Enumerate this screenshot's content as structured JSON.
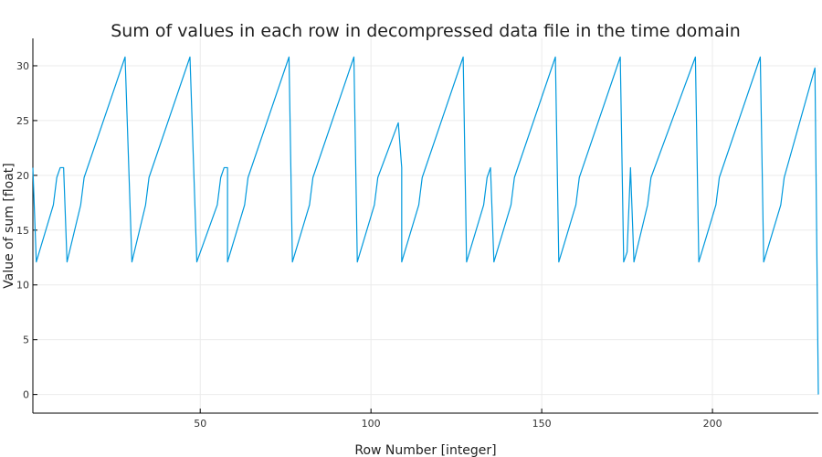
{
  "chart_data": {
    "type": "line",
    "title": "Sum of values in each row in decompressed data file in the time domain",
    "xlabel": "Row Number [integer]",
    "ylabel": "Value of sum [float]",
    "xlim": [
      1,
      231
    ],
    "ylim": [
      -1.7,
      32.5
    ],
    "xticks": [
      50,
      100,
      150,
      200
    ],
    "yticks": [
      0,
      5,
      10,
      15,
      20,
      25,
      30
    ],
    "grid": true,
    "legend": "none",
    "series": [
      {
        "color": "#0099dd",
        "points": [
          [
            1,
            20.7
          ],
          [
            2,
            12.1
          ],
          [
            7,
            17.3
          ],
          [
            8,
            19.8
          ],
          [
            9,
            20.7
          ],
          [
            10,
            20.7
          ],
          [
            11,
            12.1
          ],
          [
            15,
            17.3
          ],
          [
            16,
            19.8
          ],
          [
            28,
            30.8
          ],
          [
            30,
            12.1
          ],
          [
            34,
            17.3
          ],
          [
            35,
            19.8
          ],
          [
            47,
            30.8
          ],
          [
            49,
            12.1
          ],
          [
            55,
            17.3
          ],
          [
            56,
            19.8
          ],
          [
            57,
            20.7
          ],
          [
            58,
            20.7
          ],
          [
            58,
            12.1
          ],
          [
            63,
            17.3
          ],
          [
            64,
            19.8
          ],
          [
            76,
            30.8
          ],
          [
            77,
            12.1
          ],
          [
            82,
            17.3
          ],
          [
            83,
            19.8
          ],
          [
            95,
            30.8
          ],
          [
            96,
            12.1
          ],
          [
            101,
            17.3
          ],
          [
            102,
            19.8
          ],
          [
            108,
            24.8
          ],
          [
            109,
            20.7
          ],
          [
            109,
            12.1
          ],
          [
            114,
            17.3
          ],
          [
            115,
            19.8
          ],
          [
            127,
            30.8
          ],
          [
            128,
            12.1
          ],
          [
            133,
            17.3
          ],
          [
            134,
            19.8
          ],
          [
            135,
            20.7
          ],
          [
            136,
            12.1
          ],
          [
            141,
            17.3
          ],
          [
            142,
            19.8
          ],
          [
            154,
            30.8
          ],
          [
            155,
            12.1
          ],
          [
            160,
            17.3
          ],
          [
            161,
            19.8
          ],
          [
            173,
            30.8
          ],
          [
            174,
            12.1
          ],
          [
            175,
            13.0
          ],
          [
            176,
            20.7
          ],
          [
            177,
            12.1
          ],
          [
            181,
            17.3
          ],
          [
            182,
            19.8
          ],
          [
            195,
            30.8
          ],
          [
            196,
            12.1
          ],
          [
            201,
            17.3
          ],
          [
            202,
            19.8
          ],
          [
            214,
            30.8
          ],
          [
            215,
            12.1
          ],
          [
            220,
            17.3
          ],
          [
            221,
            19.8
          ],
          [
            230,
            29.8
          ],
          [
            231,
            0
          ]
        ]
      }
    ]
  }
}
